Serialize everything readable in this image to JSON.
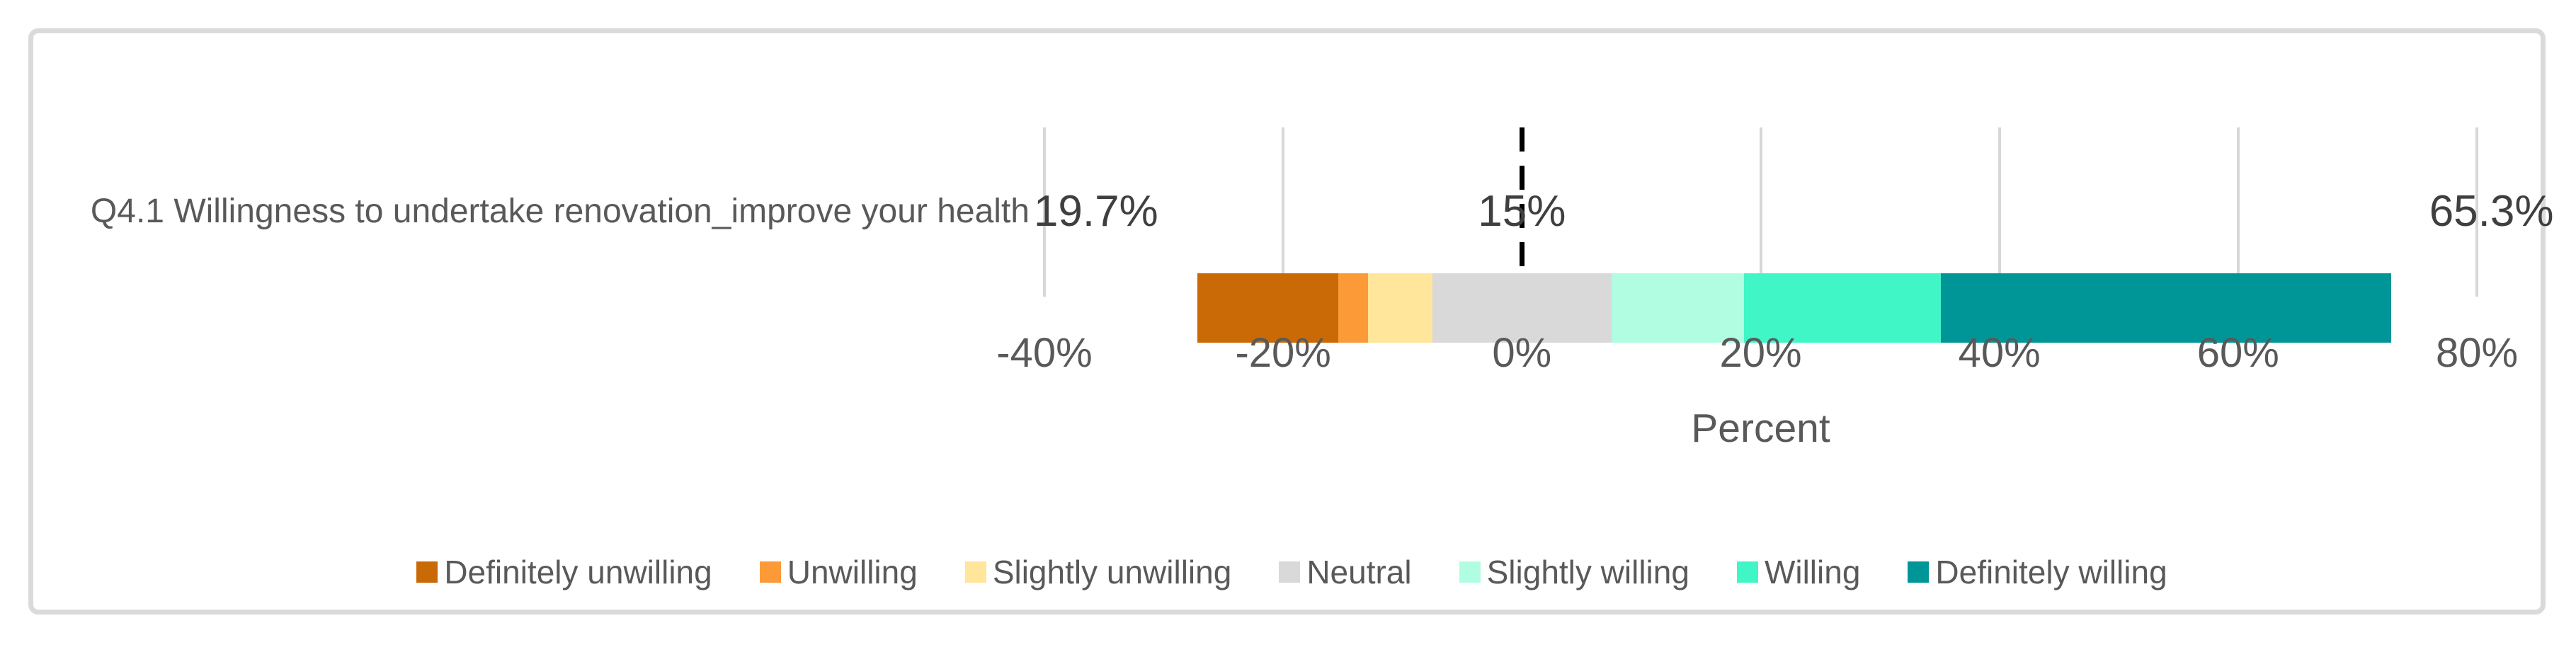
{
  "chart_data": {
    "type": "bar",
    "subtype": "diverging-stacked-likert",
    "orientation": "horizontal",
    "category": "Q4.1 Willingness to undertake renovation_improve your health",
    "series": [
      {
        "name": "Definitely unwilling",
        "value": 11.8,
        "color": "#C96A06",
        "side": "negative"
      },
      {
        "name": "Unwilling",
        "value": 2.5,
        "color": "#FD9A38",
        "side": "negative"
      },
      {
        "name": "Slightly unwilling",
        "value": 5.4,
        "color": "#FFE69A",
        "side": "negative"
      },
      {
        "name": "Neutral",
        "value": 15.0,
        "color": "#D9D9D9",
        "side": "center"
      },
      {
        "name": "Slightly willing",
        "value": 11.1,
        "color": "#B0FDE1",
        "side": "positive"
      },
      {
        "name": "Willing",
        "value": 16.5,
        "color": "#40F5C6",
        "side": "positive"
      },
      {
        "name": "Definitely willing",
        "value": 37.7,
        "color": "#009697",
        "side": "positive"
      }
    ],
    "data_labels": {
      "negative_total": "19.7%",
      "neutral": "15%",
      "positive_total": "65.3%"
    },
    "xlabel": "Percent",
    "xlim": [
      -40,
      80
    ],
    "x_ticks": [
      {
        "value": -40,
        "label": "-40%"
      },
      {
        "value": -20,
        "label": "-20%"
      },
      {
        "value": 0,
        "label": "0%"
      },
      {
        "value": 20,
        "label": "20%"
      },
      {
        "value": 40,
        "label": "40%"
      },
      {
        "value": 60,
        "label": "60%"
      },
      {
        "value": 80,
        "label": "80%"
      }
    ],
    "grid": true,
    "zero_reference_line": "black-dashed",
    "legend_position": "bottom"
  },
  "colors": {
    "card_border": "#DADADA",
    "gridline": "#D7D7D7",
    "zero_line": "#000000",
    "axis_text": "#595959",
    "data_label_text": "#3F3F3F"
  }
}
